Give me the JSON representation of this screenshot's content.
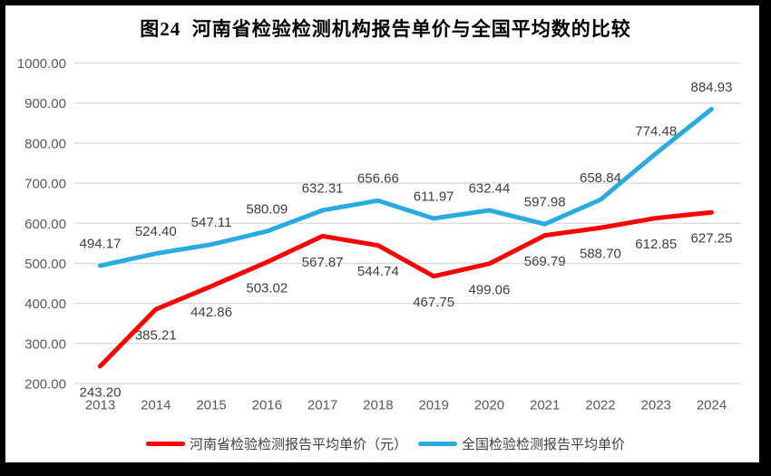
{
  "chart_data": {
    "type": "line",
    "title": "图24  河南省检验检测机构报告单价与全国平均数的比较",
    "xlabel": "",
    "ylabel": "",
    "categories": [
      "2013",
      "2014",
      "2015",
      "2016",
      "2017",
      "2018",
      "2019",
      "2020",
      "2021",
      "2022",
      "2023",
      "2024"
    ],
    "series": [
      {
        "name": "河南省检验检测报告平均单价（元）",
        "color": "#fe0000",
        "label_position": "below",
        "values": [
          243.2,
          385.21,
          442.86,
          503.02,
          567.87,
          544.74,
          467.75,
          499.06,
          569.79,
          588.7,
          612.85,
          627.25
        ]
      },
      {
        "name": "全国检验检测报告平均单价",
        "color": "#29abe2",
        "label_position": "above",
        "values": [
          494.17,
          524.4,
          547.11,
          580.09,
          632.31,
          656.66,
          611.97,
          632.44,
          597.98,
          658.84,
          774.48,
          884.93
        ]
      }
    ],
    "ylim": [
      200,
      1000
    ],
    "ytick_step": 100,
    "ytick_decimals": 2,
    "data_label_decimals": 2,
    "grid": true,
    "legend_position": "bottom"
  },
  "styles": {
    "frame_color": "#000000",
    "grid_color": "#d9d9d9",
    "tick_label_color": "#595959",
    "data_label_color": "#3f3f3f",
    "background": "#ffffff"
  }
}
